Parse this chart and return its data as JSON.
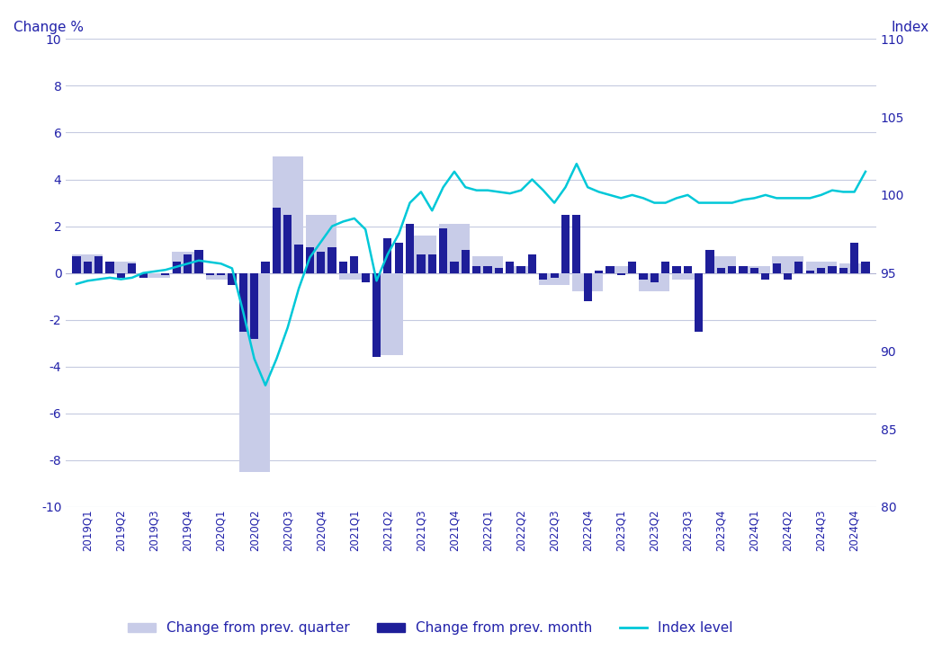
{
  "ylabel_left": "Change %",
  "ylabel_right": "Index",
  "ylim_left": [
    -10,
    10
  ],
  "ylim_right": [
    80,
    110
  ],
  "background_color": "#ffffff",
  "grid_color": "#c5cae0",
  "text_color": "#2222aa",
  "quarters": [
    "2019Q1",
    "2019Q2",
    "2019Q3",
    "2019Q4",
    "2020Q1",
    "2020Q2",
    "2020Q3",
    "2020Q4",
    "2021Q1",
    "2021Q2",
    "2021Q3",
    "2021Q4",
    "2022Q1",
    "2022Q2",
    "2022Q3",
    "2022Q4",
    "2023Q1",
    "2023Q2",
    "2023Q3",
    "2023Q4",
    "2024Q1",
    "2024Q2",
    "2024Q3",
    "2024Q4"
  ],
  "change_quarter_all": [
    0.8,
    0.5,
    -0.2,
    0.9,
    -0.3,
    -8.5,
    5.0,
    2.5,
    -0.3,
    -3.5,
    1.6,
    2.1,
    0.7,
    0.3,
    -0.5,
    -0.8,
    0.3,
    -0.8,
    -0.3,
    0.7,
    0.3,
    0.7,
    0.5,
    0.4
  ],
  "change_month": [
    0.7,
    0.5,
    0.7,
    0.5,
    -0.2,
    0.4,
    -0.2,
    0.0,
    -0.1,
    0.5,
    0.8,
    1.0,
    -0.1,
    -0.1,
    -0.5,
    -2.5,
    -2.8,
    0.5,
    2.8,
    2.5,
    1.2,
    1.1,
    0.9,
    1.1,
    0.5,
    0.7,
    -0.4,
    -3.6,
    1.5,
    1.3,
    2.1,
    0.8,
    0.8,
    1.9,
    0.5,
    1.0,
    0.3,
    0.3,
    0.2,
    0.5,
    0.3,
    0.8,
    -0.3,
    -0.2,
    2.5,
    2.5,
    -1.2,
    0.1,
    0.3,
    -0.1,
    0.5,
    -0.3,
    -0.4,
    0.5,
    0.3,
    0.3,
    -2.5,
    1.0,
    0.2,
    0.3,
    0.3,
    0.2,
    -0.3,
    0.4,
    -0.3,
    0.5,
    0.1,
    0.2,
    0.3,
    0.2,
    1.3,
    0.5
  ],
  "index_level": [
    94.3,
    94.5,
    94.6,
    94.7,
    94.6,
    94.7,
    95.0,
    95.1,
    95.2,
    95.4,
    95.6,
    95.8,
    95.7,
    95.6,
    95.3,
    92.5,
    89.5,
    87.8,
    89.5,
    91.5,
    94.0,
    96.0,
    97.0,
    98.0,
    98.3,
    98.5,
    97.8,
    94.5,
    96.2,
    97.5,
    99.5,
    100.2,
    99.0,
    100.5,
    101.5,
    100.5,
    100.3,
    100.3,
    100.2,
    100.1,
    100.3,
    101.0,
    100.3,
    99.5,
    100.5,
    102.0,
    100.5,
    100.2,
    100.0,
    99.8,
    100.0,
    99.8,
    99.5,
    99.5,
    99.8,
    100.0,
    99.5,
    99.5,
    99.5,
    99.5,
    99.7,
    99.8,
    100.0,
    99.8,
    99.8,
    99.8,
    99.8,
    100.0,
    100.3,
    100.2,
    100.2,
    101.5
  ],
  "bar_color_quarter": "#c8cce8",
  "bar_color_month": "#1e1e99",
  "line_color": "#00c8d8",
  "legend_labels": [
    "Change from prev. quarter",
    "Change from prev. month",
    "Index level"
  ]
}
